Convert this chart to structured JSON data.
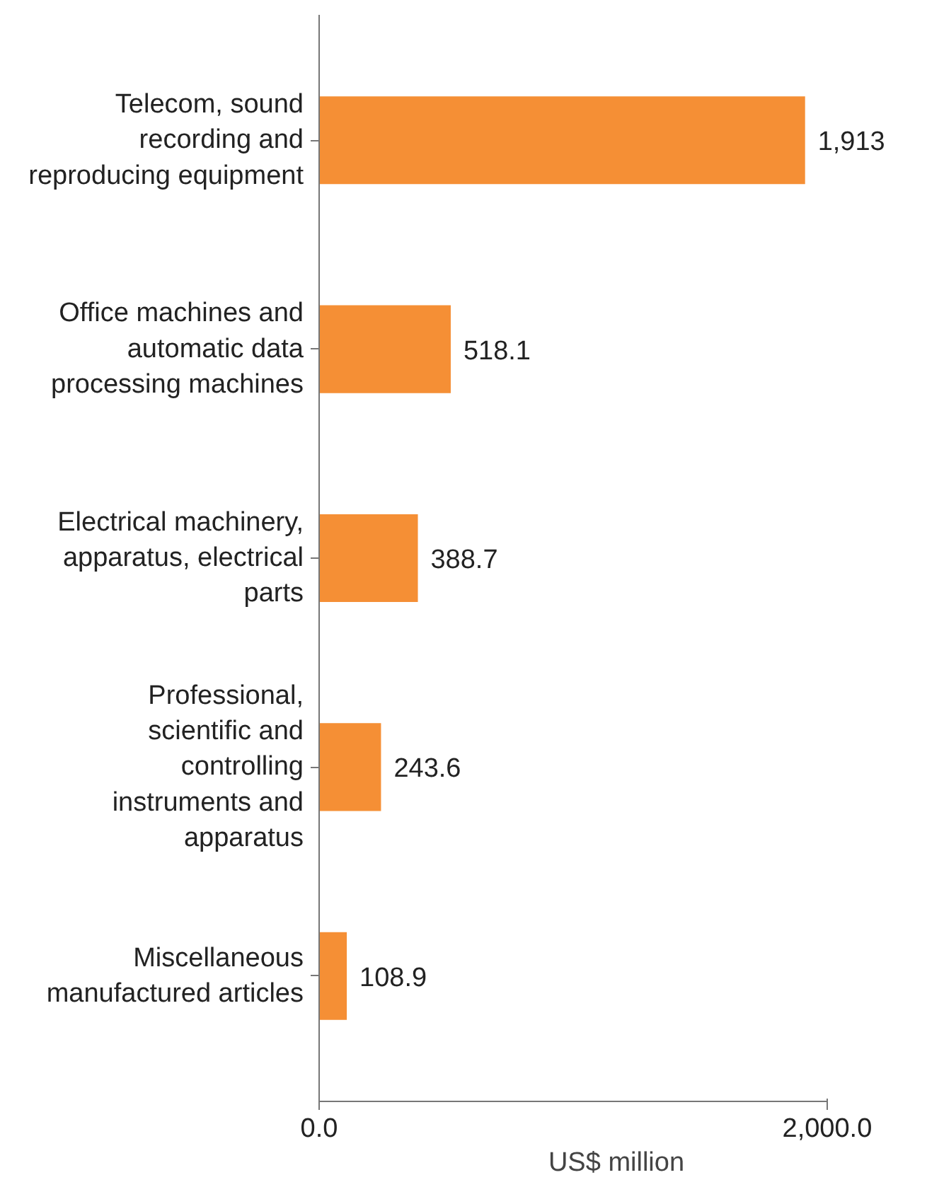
{
  "chart_data": {
    "type": "bar",
    "orientation": "horizontal",
    "xlabel": "US$ million",
    "categories": [
      "Telecom, sound recording and reproducing equipment",
      "Office machines and automatic data processing machines",
      "Electrical machinery, apparatus, electrical parts",
      "Professional, scientific and controlling instruments and apparatus",
      "Miscellaneous manufactured articles"
    ],
    "values": [
      1913,
      518.1,
      388.7,
      243.6,
      108.9
    ],
    "value_labels": [
      "1,913",
      "518.1",
      "388.7",
      "243.6",
      "108.9"
    ],
    "color": "#f58f35",
    "xlim": [
      0,
      2000
    ],
    "xticks": [
      {
        "value": 0,
        "label": "0.0"
      },
      {
        "value": 2000,
        "label": "2,000.0"
      }
    ],
    "grid": false
  }
}
